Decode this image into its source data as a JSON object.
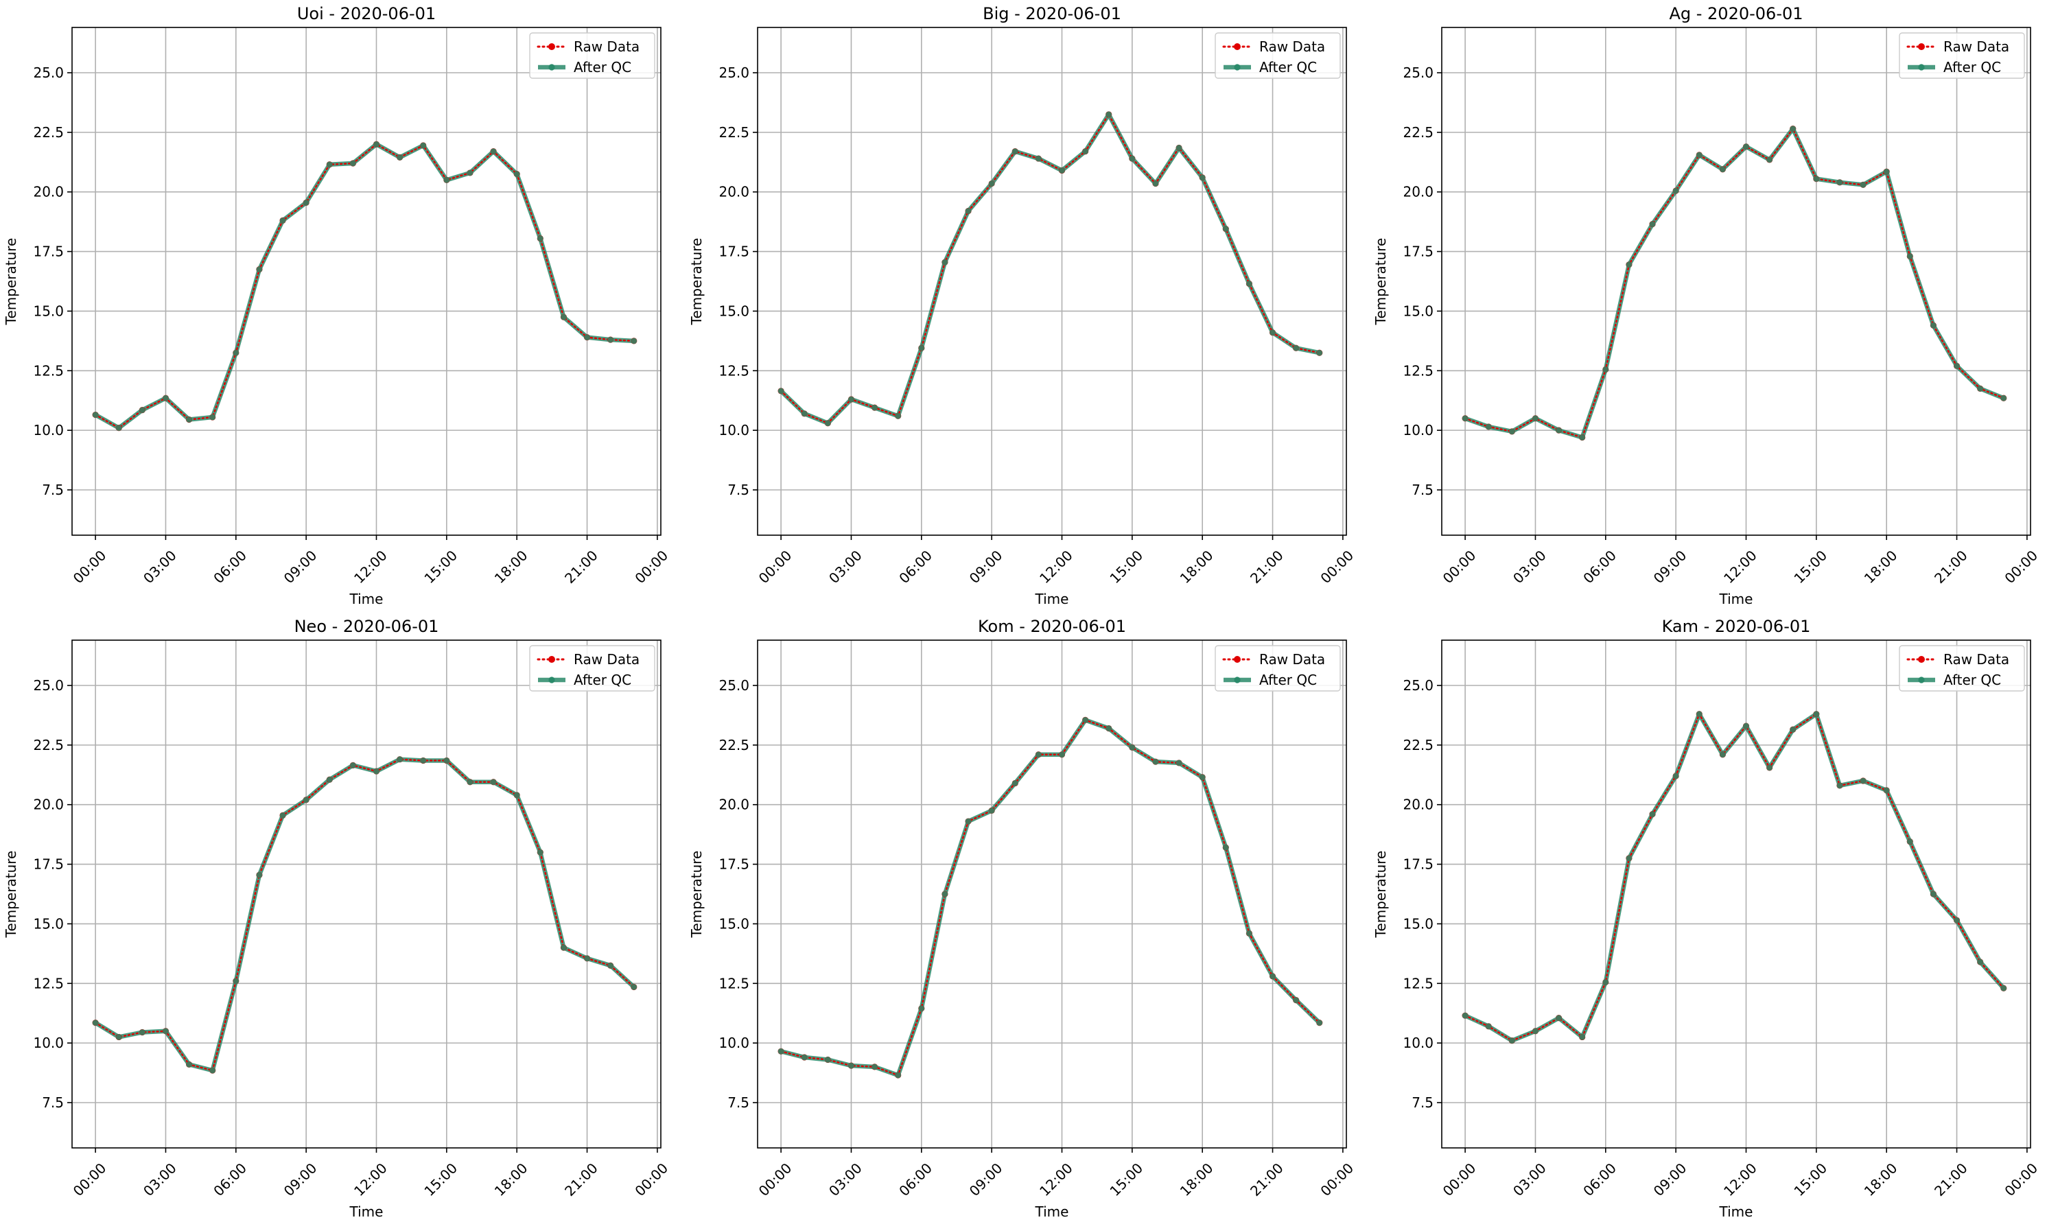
{
  "colors": {
    "raw": "#e00000",
    "qc": "#2a8a6a",
    "grid": "#b0b0b0",
    "axis": "#000000",
    "legend_border": "#cccccc"
  },
  "chart_data": [
    {
      "type": "line",
      "title": "Uoi - 2020-06-01",
      "xlabel": "Time",
      "ylabel": "Temperature",
      "x": [
        "00:00",
        "01:00",
        "02:00",
        "03:00",
        "04:00",
        "05:00",
        "06:00",
        "07:00",
        "08:00",
        "09:00",
        "10:00",
        "11:00",
        "12:00",
        "13:00",
        "14:00",
        "15:00",
        "16:00",
        "17:00",
        "18:00",
        "19:00",
        "20:00",
        "21:00",
        "22:00",
        "23:00"
      ],
      "xticks": [
        "00:00",
        "03:00",
        "06:00",
        "09:00",
        "12:00",
        "15:00",
        "18:00",
        "21:00",
        "00:00"
      ],
      "yticks": [
        "7.5",
        "10.0",
        "12.5",
        "15.0",
        "17.5",
        "20.0",
        "22.5",
        "25.0"
      ],
      "ylim": [
        5.6,
        26.9
      ],
      "xlim": [
        -1.0,
        24.15
      ],
      "grid": true,
      "legend_position": "top-right",
      "series": [
        {
          "name": "Raw Data",
          "style": "dotted-markers",
          "values": [
            10.65,
            10.1,
            10.85,
            11.35,
            10.45,
            10.55,
            13.25,
            16.75,
            18.8,
            19.55,
            21.15,
            21.2,
            22.0,
            21.45,
            21.95,
            20.5,
            20.8,
            21.7,
            20.75,
            18.05,
            14.75,
            13.9,
            13.8,
            13.75
          ]
        },
        {
          "name": "After QC",
          "style": "thick-line-markers",
          "values": [
            10.65,
            10.1,
            10.85,
            11.35,
            10.45,
            10.55,
            13.25,
            16.75,
            18.8,
            19.55,
            21.15,
            21.2,
            22.0,
            21.45,
            21.95,
            20.5,
            20.8,
            21.7,
            20.75,
            18.05,
            14.75,
            13.9,
            13.8,
            13.75
          ]
        }
      ]
    },
    {
      "type": "line",
      "title": "Big - 2020-06-01",
      "xlabel": "Time",
      "ylabel": "Temperature",
      "x": [
        "00:00",
        "01:00",
        "02:00",
        "03:00",
        "04:00",
        "05:00",
        "06:00",
        "07:00",
        "08:00",
        "09:00",
        "10:00",
        "11:00",
        "12:00",
        "13:00",
        "14:00",
        "15:00",
        "16:00",
        "17:00",
        "18:00",
        "19:00",
        "20:00",
        "21:00",
        "22:00",
        "23:00"
      ],
      "xticks": [
        "00:00",
        "03:00",
        "06:00",
        "09:00",
        "12:00",
        "15:00",
        "18:00",
        "21:00",
        "00:00"
      ],
      "yticks": [
        "7.5",
        "10.0",
        "12.5",
        "15.0",
        "17.5",
        "20.0",
        "22.5",
        "25.0"
      ],
      "ylim": [
        5.6,
        26.9
      ],
      "xlim": [
        -1.0,
        24.15
      ],
      "grid": true,
      "legend_position": "top-right",
      "series": [
        {
          "name": "Raw Data",
          "style": "dotted-markers",
          "values": [
            11.65,
            10.7,
            10.3,
            11.3,
            10.95,
            10.6,
            13.45,
            17.05,
            19.2,
            20.35,
            21.7,
            21.4,
            20.9,
            21.7,
            23.25,
            21.4,
            20.35,
            21.85,
            20.6,
            18.45,
            16.15,
            14.1,
            13.45,
            13.25
          ]
        },
        {
          "name": "After QC",
          "style": "thick-line-markers",
          "values": [
            11.65,
            10.7,
            10.3,
            11.3,
            10.95,
            10.6,
            13.45,
            17.05,
            19.2,
            20.35,
            21.7,
            21.4,
            20.9,
            21.7,
            23.25,
            21.4,
            20.35,
            21.85,
            20.6,
            18.45,
            16.15,
            14.1,
            13.45,
            13.25
          ]
        }
      ]
    },
    {
      "type": "line",
      "title": "Ag - 2020-06-01",
      "xlabel": "Time",
      "ylabel": "Temperature",
      "x": [
        "00:00",
        "01:00",
        "02:00",
        "03:00",
        "04:00",
        "05:00",
        "06:00",
        "07:00",
        "08:00",
        "09:00",
        "10:00",
        "11:00",
        "12:00",
        "13:00",
        "14:00",
        "15:00",
        "16:00",
        "17:00",
        "18:00",
        "19:00",
        "20:00",
        "21:00",
        "22:00",
        "23:00"
      ],
      "xticks": [
        "00:00",
        "03:00",
        "06:00",
        "09:00",
        "12:00",
        "15:00",
        "18:00",
        "21:00",
        "00:00"
      ],
      "yticks": [
        "7.5",
        "10.0",
        "12.5",
        "15.0",
        "17.5",
        "20.0",
        "22.5",
        "25.0"
      ],
      "ylim": [
        5.6,
        26.9
      ],
      "xlim": [
        -1.0,
        24.15
      ],
      "grid": true,
      "legend_position": "top-right",
      "series": [
        {
          "name": "Raw Data",
          "style": "dotted-markers",
          "values": [
            10.5,
            10.15,
            9.95,
            10.5,
            10.0,
            9.7,
            12.55,
            16.95,
            18.65,
            20.05,
            21.55,
            20.95,
            21.9,
            21.35,
            22.65,
            20.55,
            20.4,
            20.3,
            20.85,
            17.3,
            14.4,
            12.7,
            11.75,
            11.35
          ]
        },
        {
          "name": "After QC",
          "style": "thick-line-markers",
          "values": [
            10.5,
            10.15,
            9.95,
            10.5,
            10.0,
            9.7,
            12.55,
            16.95,
            18.65,
            20.05,
            21.55,
            20.95,
            21.9,
            21.35,
            22.65,
            20.55,
            20.4,
            20.3,
            20.85,
            17.3,
            14.4,
            12.7,
            11.75,
            11.35
          ]
        }
      ]
    },
    {
      "type": "line",
      "title": "Neo - 2020-06-01",
      "xlabel": "Time",
      "ylabel": "Temperature",
      "x": [
        "00:00",
        "01:00",
        "02:00",
        "03:00",
        "04:00",
        "05:00",
        "06:00",
        "07:00",
        "08:00",
        "09:00",
        "10:00",
        "11:00",
        "12:00",
        "13:00",
        "14:00",
        "15:00",
        "16:00",
        "17:00",
        "18:00",
        "19:00",
        "20:00",
        "21:00",
        "22:00",
        "23:00"
      ],
      "xticks": [
        "00:00",
        "03:00",
        "06:00",
        "09:00",
        "12:00",
        "15:00",
        "18:00",
        "21:00",
        "00:00"
      ],
      "yticks": [
        "7.5",
        "10.0",
        "12.5",
        "15.0",
        "17.5",
        "20.0",
        "22.5",
        "25.0"
      ],
      "ylim": [
        5.6,
        26.9
      ],
      "xlim": [
        -1.0,
        24.15
      ],
      "grid": true,
      "legend_position": "top-right",
      "series": [
        {
          "name": "Raw Data",
          "style": "dotted-markers",
          "values": [
            10.85,
            10.25,
            10.45,
            10.5,
            9.1,
            8.85,
            12.6,
            17.05,
            19.55,
            20.2,
            21.05,
            21.65,
            21.4,
            21.9,
            21.85,
            21.85,
            20.95,
            20.95,
            20.4,
            18.0,
            14.0,
            13.55,
            13.25,
            12.35
          ]
        },
        {
          "name": "After QC",
          "style": "thick-line-markers",
          "values": [
            10.85,
            10.25,
            10.45,
            10.5,
            9.1,
            8.85,
            12.6,
            17.05,
            19.55,
            20.2,
            21.05,
            21.65,
            21.4,
            21.9,
            21.85,
            21.85,
            20.95,
            20.95,
            20.4,
            18.0,
            14.0,
            13.55,
            13.25,
            12.35
          ]
        }
      ]
    },
    {
      "type": "line",
      "title": "Kom - 2020-06-01",
      "xlabel": "Time",
      "ylabel": "Temperature",
      "x": [
        "00:00",
        "01:00",
        "02:00",
        "03:00",
        "04:00",
        "05:00",
        "06:00",
        "07:00",
        "08:00",
        "09:00",
        "10:00",
        "11:00",
        "12:00",
        "13:00",
        "14:00",
        "15:00",
        "16:00",
        "17:00",
        "18:00",
        "19:00",
        "20:00",
        "21:00",
        "22:00",
        "23:00"
      ],
      "xticks": [
        "00:00",
        "03:00",
        "06:00",
        "09:00",
        "12:00",
        "15:00",
        "18:00",
        "21:00",
        "00:00"
      ],
      "yticks": [
        "7.5",
        "10.0",
        "12.5",
        "15.0",
        "17.5",
        "20.0",
        "22.5",
        "25.0"
      ],
      "ylim": [
        5.6,
        26.9
      ],
      "xlim": [
        -1.0,
        24.15
      ],
      "grid": true,
      "legend_position": "top-right",
      "series": [
        {
          "name": "Raw Data",
          "style": "dotted-markers",
          "values": [
            9.65,
            9.4,
            9.3,
            9.05,
            9.0,
            8.65,
            11.45,
            16.25,
            19.3,
            19.75,
            20.9,
            22.1,
            22.1,
            23.55,
            23.2,
            22.4,
            21.8,
            21.75,
            21.15,
            18.2,
            14.6,
            12.8,
            11.8,
            10.85
          ]
        },
        {
          "name": "After QC",
          "style": "thick-line-markers",
          "values": [
            9.65,
            9.4,
            9.3,
            9.05,
            9.0,
            8.65,
            11.45,
            16.25,
            19.3,
            19.75,
            20.9,
            22.1,
            22.1,
            23.55,
            23.2,
            22.4,
            21.8,
            21.75,
            21.15,
            18.2,
            14.6,
            12.8,
            11.8,
            10.85
          ]
        }
      ]
    },
    {
      "type": "line",
      "title": "Kam - 2020-06-01",
      "xlabel": "Time",
      "ylabel": "Temperature",
      "x": [
        "00:00",
        "01:00",
        "02:00",
        "03:00",
        "04:00",
        "05:00",
        "06:00",
        "07:00",
        "08:00",
        "09:00",
        "10:00",
        "11:00",
        "12:00",
        "13:00",
        "14:00",
        "15:00",
        "16:00",
        "17:00",
        "18:00",
        "19:00",
        "20:00",
        "21:00",
        "22:00",
        "23:00"
      ],
      "xticks": [
        "00:00",
        "03:00",
        "06:00",
        "09:00",
        "12:00",
        "15:00",
        "18:00",
        "21:00",
        "00:00"
      ],
      "yticks": [
        "7.5",
        "10.0",
        "12.5",
        "15.0",
        "17.5",
        "20.0",
        "22.5",
        "25.0"
      ],
      "ylim": [
        5.6,
        26.9
      ],
      "xlim": [
        -1.0,
        24.15
      ],
      "grid": true,
      "legend_position": "top-right",
      "series": [
        {
          "name": "Raw Data",
          "style": "dotted-markers",
          "values": [
            11.15,
            10.7,
            10.1,
            10.5,
            11.05,
            10.25,
            12.55,
            17.75,
            19.6,
            21.2,
            23.8,
            22.1,
            23.3,
            21.55,
            23.15,
            23.8,
            20.8,
            21.0,
            20.6,
            18.45,
            16.25,
            15.15,
            13.4,
            12.3
          ]
        },
        {
          "name": "After QC",
          "style": "thick-line-markers",
          "values": [
            11.15,
            10.7,
            10.1,
            10.5,
            11.05,
            10.25,
            12.55,
            17.75,
            19.6,
            21.2,
            23.8,
            22.1,
            23.3,
            21.55,
            23.15,
            23.8,
            20.8,
            21.0,
            20.6,
            18.45,
            16.25,
            15.15,
            13.4,
            12.3
          ]
        }
      ]
    }
  ]
}
